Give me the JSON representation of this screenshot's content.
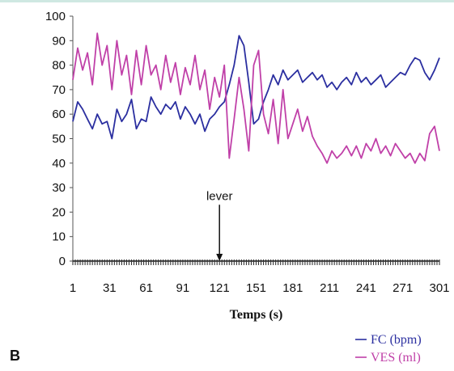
{
  "panel_label": "B",
  "chart_data": {
    "type": "line",
    "title": "",
    "xlabel": "Temps (s)",
    "ylabel": "",
    "xlim": [
      1,
      301
    ],
    "ylim": [
      0,
      100
    ],
    "x_ticks": [
      "1",
      "31",
      "61",
      "91",
      "121",
      "151",
      "181",
      "211",
      "241",
      "271",
      "301"
    ],
    "y_ticks": [
      "0",
      "10",
      "20",
      "30",
      "40",
      "50",
      "60",
      "70",
      "80",
      "90",
      "100"
    ],
    "grid": false,
    "legend_position": "bottom-right",
    "annotation": {
      "text": "lever",
      "x": 121,
      "arrow_from_y": 23,
      "arrow_to_y": 0
    },
    "series": [
      {
        "name": "FC (bpm)",
        "color": "#2b2fa0",
        "x": [
          1,
          5,
          9,
          13,
          17,
          21,
          25,
          29,
          33,
          37,
          41,
          45,
          49,
          53,
          57,
          61,
          65,
          69,
          73,
          77,
          81,
          85,
          89,
          93,
          97,
          101,
          105,
          109,
          113,
          117,
          121,
          125,
          129,
          133,
          137,
          141,
          145,
          149,
          153,
          157,
          161,
          165,
          169,
          173,
          177,
          181,
          185,
          189,
          193,
          197,
          201,
          205,
          209,
          213,
          217,
          221,
          225,
          229,
          233,
          237,
          241,
          245,
          249,
          253,
          257,
          261,
          265,
          269,
          273,
          277,
          281,
          285,
          289,
          293,
          297,
          301
        ],
        "values": [
          57,
          65,
          62,
          58,
          54,
          60,
          56,
          57,
          50,
          62,
          57,
          60,
          66,
          54,
          58,
          57,
          67,
          63,
          60,
          64,
          62,
          65,
          58,
          63,
          60,
          56,
          60,
          53,
          58,
          60,
          63,
          65,
          72,
          80,
          92,
          88,
          73,
          56,
          58,
          65,
          70,
          76,
          72,
          78,
          74,
          76,
          78,
          73,
          75,
          77,
          74,
          76,
          71,
          73,
          70,
          73,
          75,
          72,
          77,
          73,
          75,
          72,
          74,
          76,
          71,
          73,
          75,
          77,
          76,
          80,
          83,
          82,
          77,
          74,
          78,
          83
        ]
      },
      {
        "name": "VES (ml)",
        "color": "#c040a8",
        "x": [
          1,
          5,
          9,
          13,
          17,
          21,
          25,
          29,
          33,
          37,
          41,
          45,
          49,
          53,
          57,
          61,
          65,
          69,
          73,
          77,
          81,
          85,
          89,
          93,
          97,
          101,
          105,
          109,
          113,
          117,
          121,
          125,
          129,
          133,
          137,
          141,
          145,
          149,
          153,
          157,
          161,
          165,
          169,
          173,
          177,
          181,
          185,
          189,
          193,
          197,
          201,
          205,
          209,
          213,
          217,
          221,
          225,
          229,
          233,
          237,
          241,
          245,
          249,
          253,
          257,
          261,
          265,
          269,
          273,
          277,
          281,
          285,
          289,
          293,
          297,
          301
        ],
        "values": [
          74,
          87,
          78,
          85,
          72,
          93,
          80,
          88,
          70,
          90,
          76,
          84,
          68,
          86,
          72,
          88,
          76,
          80,
          70,
          84,
          73,
          81,
          68,
          79,
          72,
          84,
          70,
          78,
          62,
          75,
          67,
          80,
          42,
          58,
          75,
          62,
          45,
          80,
          86,
          60,
          52,
          66,
          48,
          70,
          50,
          56,
          62,
          53,
          59,
          51,
          47,
          44,
          40,
          45,
          42,
          44,
          47,
          43,
          47,
          42,
          48,
          45,
          50,
          44,
          47,
          43,
          48,
          45,
          42,
          44,
          40,
          44,
          41,
          52,
          55,
          45
        ]
      }
    ]
  }
}
